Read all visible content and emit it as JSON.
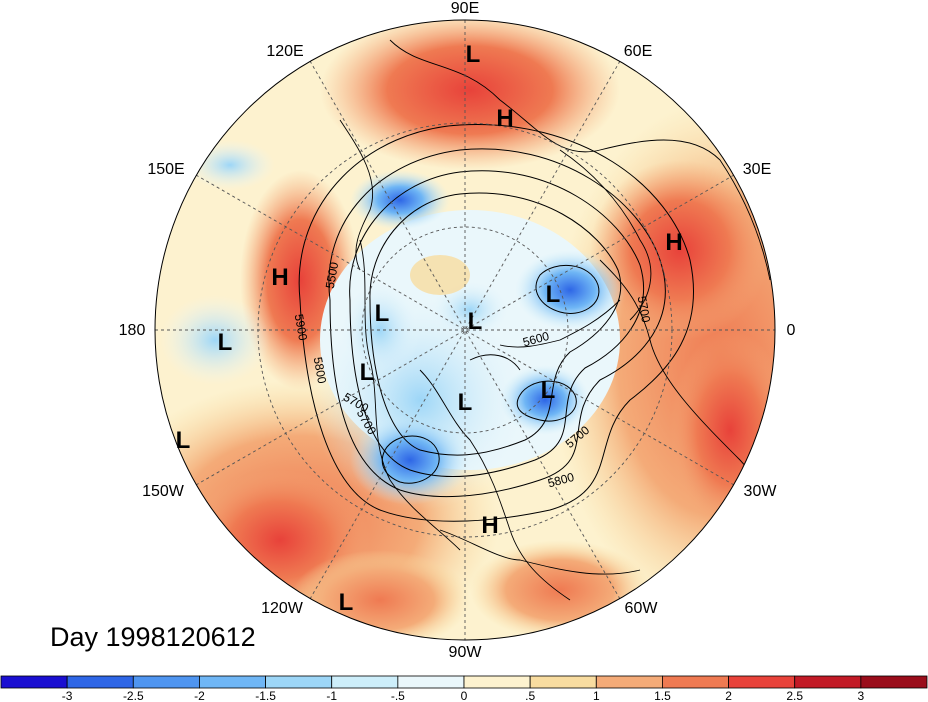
{
  "map": {
    "title": "Day 1998120612",
    "projection": "north-polar-stereographic",
    "longitude_labels": [
      "90E",
      "60E",
      "30E",
      "0",
      "30W",
      "60W",
      "90W",
      "120W",
      "150W",
      "180",
      "150E",
      "120E"
    ],
    "highs_lows": [
      "L",
      "H",
      "H",
      "H",
      "L",
      "L",
      "L",
      "L",
      "L",
      "L",
      "L",
      "L",
      "H",
      "L"
    ],
    "contour_labels": [
      "5500",
      "5900",
      "5800",
      "5700",
      "5700",
      "5600",
      "5700",
      "5800",
      "5700"
    ],
    "colorbar": {
      "ticks": [
        "-3",
        "-2.5",
        "-2",
        "-1.5",
        "-1",
        "-.5",
        "0",
        ".5",
        "1",
        "1.5",
        "2",
        "2.5",
        "3"
      ],
      "colors": [
        "#1a0fd1",
        "#2e66e6",
        "#4f95f0",
        "#6fb6f5",
        "#9dd6f7",
        "#cdeefa",
        "#eaf7fb",
        "#fdf2cf",
        "#f8dca0",
        "#f4ab78",
        "#ef7a52",
        "#e8423a",
        "#c21a26",
        "#9a0d1b"
      ]
    }
  }
}
